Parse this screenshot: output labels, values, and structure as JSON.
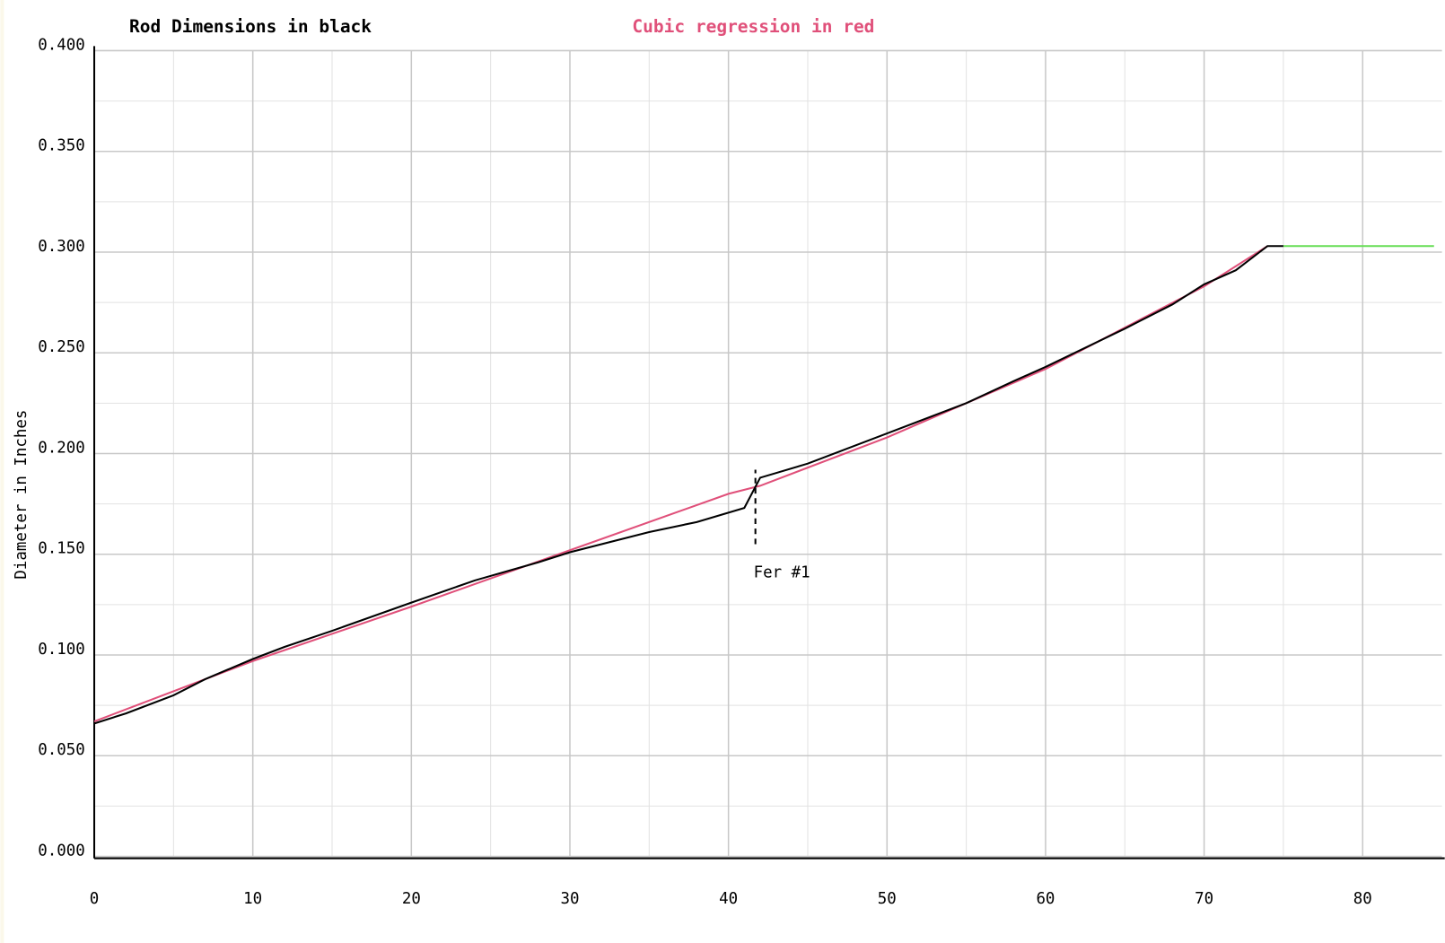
{
  "chart_data": {
    "type": "line",
    "title": "Rod Dimensions in black",
    "title_color": "#000000",
    "subtitle": "Cubic regression in red",
    "subtitle_color": "#e0507a",
    "y_label": "Diameter in Inches",
    "xlim": [
      0,
      85
    ],
    "ylim": [
      0,
      0.4
    ],
    "xticks": [
      0,
      10,
      20,
      30,
      40,
      50,
      60,
      70,
      80
    ],
    "yticks": [
      {
        "value": 0,
        "label": "0.000"
      },
      {
        "value": 0.05,
        "label": "0.050"
      },
      {
        "value": 0.1,
        "label": "0.100"
      },
      {
        "value": 0.15,
        "label": "0.150"
      },
      {
        "value": 0.2,
        "label": "0.200"
      },
      {
        "value": 0.25,
        "label": "0.250"
      },
      {
        "value": 0.3,
        "label": "0.300"
      },
      {
        "value": 0.35,
        "label": "0.350"
      },
      {
        "value": 0.4,
        "label": "0.400"
      }
    ],
    "minor_xticks": [
      5,
      15,
      25,
      35,
      45,
      55,
      65,
      75
    ],
    "minor_yticks": [
      0.025,
      0.075,
      0.125,
      0.175,
      0.225,
      0.275,
      0.325,
      0.375
    ],
    "grid": true,
    "series": [
      {
        "color": "#e0507a",
        "x": [
          0,
          10,
          20,
          30,
          40,
          42,
          50,
          60,
          70,
          74
        ],
        "values": [
          0.067,
          0.097,
          0.124,
          0.152,
          0.18,
          0.184,
          0.208,
          0.242,
          0.283,
          0.303
        ]
      },
      {
        "color": "#000000",
        "x": [
          0,
          2,
          5,
          7,
          10,
          12,
          15,
          20,
          24,
          28,
          30,
          35,
          38,
          41,
          42,
          45,
          50,
          55,
          58,
          60,
          65,
          68,
          70,
          72,
          74,
          75
        ],
        "values": [
          0.066,
          0.071,
          0.08,
          0.088,
          0.098,
          0.104,
          0.112,
          0.126,
          0.137,
          0.146,
          0.151,
          0.161,
          0.166,
          0.173,
          0.188,
          0.195,
          0.21,
          0.225,
          0.236,
          0.243,
          0.262,
          0.274,
          0.284,
          0.291,
          0.303,
          0.303
        ]
      },
      {
        "color": "#66dd55",
        "x": [
          75,
          84.5
        ],
        "values": [
          0.303,
          0.303
        ]
      }
    ],
    "annotation": {
      "text": "Fer #1",
      "x": 41.7,
      "y_range": [
        0.155,
        0.192
      ]
    }
  }
}
